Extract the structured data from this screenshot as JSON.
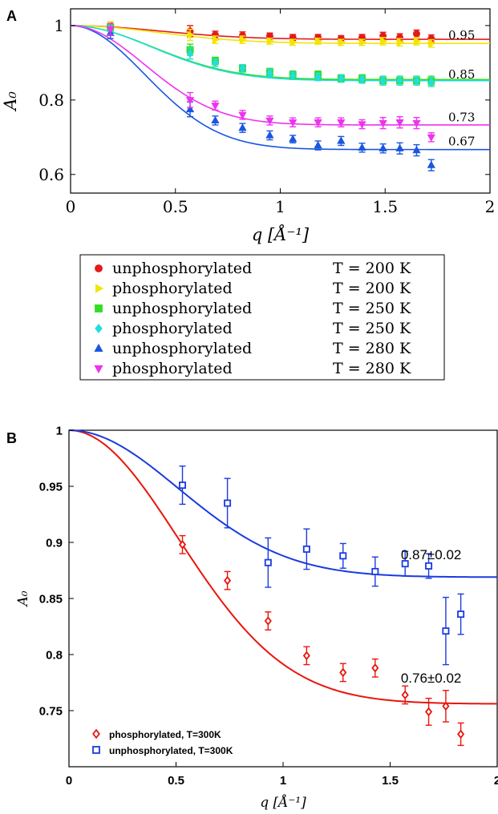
{
  "chart_data": [
    {
      "panel_label": "A",
      "type": "scatter",
      "xlabel": "q [Å⁻¹]",
      "ylabel": "A₀",
      "xlim": [
        0,
        2
      ],
      "ylim": [
        0.55,
        1.045
      ],
      "xticks": [
        "0",
        "0.5",
        "1",
        "1.5",
        "2"
      ],
      "xtick_values": [
        0,
        0.5,
        1,
        1.5,
        2
      ],
      "yticks": [
        "0.6",
        "0.8",
        "1"
      ],
      "ytick_values": [
        0.6,
        0.8,
        1.0
      ],
      "grid": false,
      "legend_position": "below",
      "fit_labels": [
        {
          "text": "0.95",
          "y": 0.963
        },
        {
          "text": "0.85",
          "y": 0.858
        },
        {
          "text": "0.73",
          "y": 0.743
        },
        {
          "text": "0.67",
          "y": 0.678
        }
      ],
      "series": [
        {
          "name": "unphosphorylated",
          "temp": "T = 200 K",
          "color": "#e41a1c",
          "marker": "circle",
          "x": [
            0.19,
            0.57,
            0.69,
            0.82,
            0.95,
            1.06,
            1.18,
            1.29,
            1.39,
            1.49,
            1.57,
            1.65,
            1.72
          ],
          "y": [
            1.0,
            0.985,
            0.975,
            0.973,
            0.972,
            0.968,
            0.968,
            0.965,
            0.968,
            0.972,
            0.968,
            0.978,
            0.965
          ],
          "err": [
            0.01,
            0.015,
            0.01,
            0.01,
            0.008,
            0.008,
            0.008,
            0.008,
            0.008,
            0.01,
            0.01,
            0.01,
            0.01
          ],
          "fit_plateau": 0.963,
          "fit_width": 0.6
        },
        {
          "name": "phosphorylated",
          "temp": "T = 200 K",
          "color": "#f2e500",
          "marker": "triangle-right",
          "x": [
            0.19,
            0.57,
            0.69,
            0.82,
            0.95,
            1.06,
            1.18,
            1.29,
            1.39,
            1.49,
            1.57,
            1.65,
            1.72
          ],
          "y": [
            1.0,
            0.975,
            0.962,
            0.962,
            0.958,
            0.955,
            0.958,
            0.955,
            0.955,
            0.958,
            0.955,
            0.958,
            0.952
          ],
          "err": [
            0.01,
            0.015,
            0.01,
            0.01,
            0.008,
            0.008,
            0.008,
            0.008,
            0.008,
            0.01,
            0.01,
            0.01,
            0.01
          ],
          "fit_plateau": 0.952,
          "fit_width": 0.6
        },
        {
          "name": "unphosphorylated",
          "temp": "T = 250 K",
          "color": "#33dd22",
          "marker": "square",
          "x": [
            0.19,
            0.57,
            0.69,
            0.82,
            0.95,
            1.06,
            1.18,
            1.29,
            1.39,
            1.49,
            1.57,
            1.65,
            1.72
          ],
          "y": [
            0.995,
            0.935,
            0.905,
            0.885,
            0.875,
            0.868,
            0.868,
            0.858,
            0.858,
            0.852,
            0.852,
            0.852,
            0.852
          ],
          "err": [
            0.01,
            0.015,
            0.01,
            0.01,
            0.01,
            0.01,
            0.01,
            0.01,
            0.01,
            0.012,
            0.012,
            0.012,
            0.012
          ],
          "fit_plateau": 0.855,
          "fit_width": 0.55
        },
        {
          "name": "phosphorylated",
          "temp": "T = 250 K",
          "color": "#22dddd",
          "marker": "diamond",
          "x": [
            0.19,
            0.57,
            0.69,
            0.82,
            0.95,
            1.06,
            1.18,
            1.29,
            1.39,
            1.49,
            1.57,
            1.65,
            1.72
          ],
          "y": [
            0.995,
            0.925,
            0.9,
            0.885,
            0.872,
            0.865,
            0.862,
            0.858,
            0.855,
            0.852,
            0.852,
            0.852,
            0.848
          ],
          "err": [
            0.01,
            0.015,
            0.01,
            0.01,
            0.01,
            0.01,
            0.01,
            0.01,
            0.01,
            0.012,
            0.012,
            0.012,
            0.012
          ],
          "fit_plateau": 0.852,
          "fit_width": 0.55
        },
        {
          "name": "unphosphorylated",
          "temp": "T = 280 K",
          "color": "#1a56e0",
          "marker": "triangle-up",
          "x": [
            0.19,
            0.57,
            0.69,
            0.82,
            0.95,
            1.06,
            1.18,
            1.29,
            1.39,
            1.49,
            1.57,
            1.65,
            1.72
          ],
          "y": [
            0.98,
            0.775,
            0.745,
            0.725,
            0.705,
            0.695,
            0.678,
            0.69,
            0.672,
            0.67,
            0.67,
            0.665,
            0.625
          ],
          "err": [
            0.015,
            0.02,
            0.012,
            0.012,
            0.012,
            0.01,
            0.012,
            0.012,
            0.012,
            0.012,
            0.015,
            0.015,
            0.015
          ],
          "fit_plateau": 0.667,
          "fit_width": 0.5
        },
        {
          "name": "phosphorylated",
          "temp": "T = 280 K",
          "color": "#ee33ee",
          "marker": "triangle-down",
          "x": [
            0.19,
            0.57,
            0.69,
            0.82,
            0.95,
            1.06,
            1.18,
            1.29,
            1.39,
            1.49,
            1.57,
            1.65,
            1.72
          ],
          "y": [
            0.99,
            0.8,
            0.785,
            0.76,
            0.745,
            0.74,
            0.74,
            0.74,
            0.735,
            0.738,
            0.74,
            0.738,
            0.7
          ],
          "err": [
            0.015,
            0.02,
            0.012,
            0.012,
            0.012,
            0.012,
            0.012,
            0.012,
            0.012,
            0.015,
            0.015,
            0.015,
            0.012
          ],
          "fit_plateau": 0.733,
          "fit_width": 0.5
        }
      ]
    },
    {
      "panel_label": "B",
      "type": "scatter",
      "xlabel": "q [Å⁻¹]",
      "ylabel": "A₀",
      "xlim": [
        0,
        2
      ],
      "ylim": [
        0.7,
        1.0
      ],
      "xticks": [
        "0",
        "0.5",
        "1",
        "1.5",
        "2"
      ],
      "xtick_values": [
        0,
        0.5,
        1,
        1.5,
        2
      ],
      "yticks": [
        "0.75",
        "0.8",
        "0.85",
        "0.9",
        "0.95",
        "1"
      ],
      "ytick_values": [
        0.75,
        0.8,
        0.85,
        0.9,
        0.95,
        1.0
      ],
      "grid": false,
      "legend_position": "bottom-left",
      "fit_labels": [
        {
          "text": "0.87±0.02",
          "q": 1.55,
          "y": 0.885
        },
        {
          "text": "0.76±0.02",
          "q": 1.55,
          "y": 0.775
        }
      ],
      "series": [
        {
          "name": "phosphorylated, T=300K",
          "color": "#e8150b",
          "marker": "diamond-open",
          "x": [
            0.53,
            0.74,
            0.93,
            1.11,
            1.28,
            1.43,
            1.57,
            1.68,
            1.76,
            1.83
          ],
          "y": [
            0.898,
            0.866,
            0.83,
            0.799,
            0.784,
            0.788,
            0.764,
            0.749,
            0.754,
            0.729
          ],
          "err": [
            0.008,
            0.008,
            0.008,
            0.008,
            0.008,
            0.008,
            0.008,
            0.012,
            0.014,
            0.01
          ],
          "fit_plateau": 0.756,
          "fit_width": 0.72
        },
        {
          "name": "unphosphorylated, T=300K",
          "color": "#1a3be0",
          "marker": "square-open",
          "x": [
            0.53,
            0.74,
            0.93,
            1.11,
            1.28,
            1.43,
            1.57,
            1.68,
            1.76,
            1.83
          ],
          "y": [
            0.951,
            0.935,
            0.882,
            0.894,
            0.888,
            0.874,
            0.881,
            0.879,
            0.821,
            0.836
          ],
          "err": [
            0.017,
            0.022,
            0.022,
            0.018,
            0.011,
            0.013,
            0.011,
            0.011,
            0.03,
            0.018
          ],
          "fit_plateau": 0.869,
          "fit_width": 0.72
        }
      ]
    }
  ]
}
